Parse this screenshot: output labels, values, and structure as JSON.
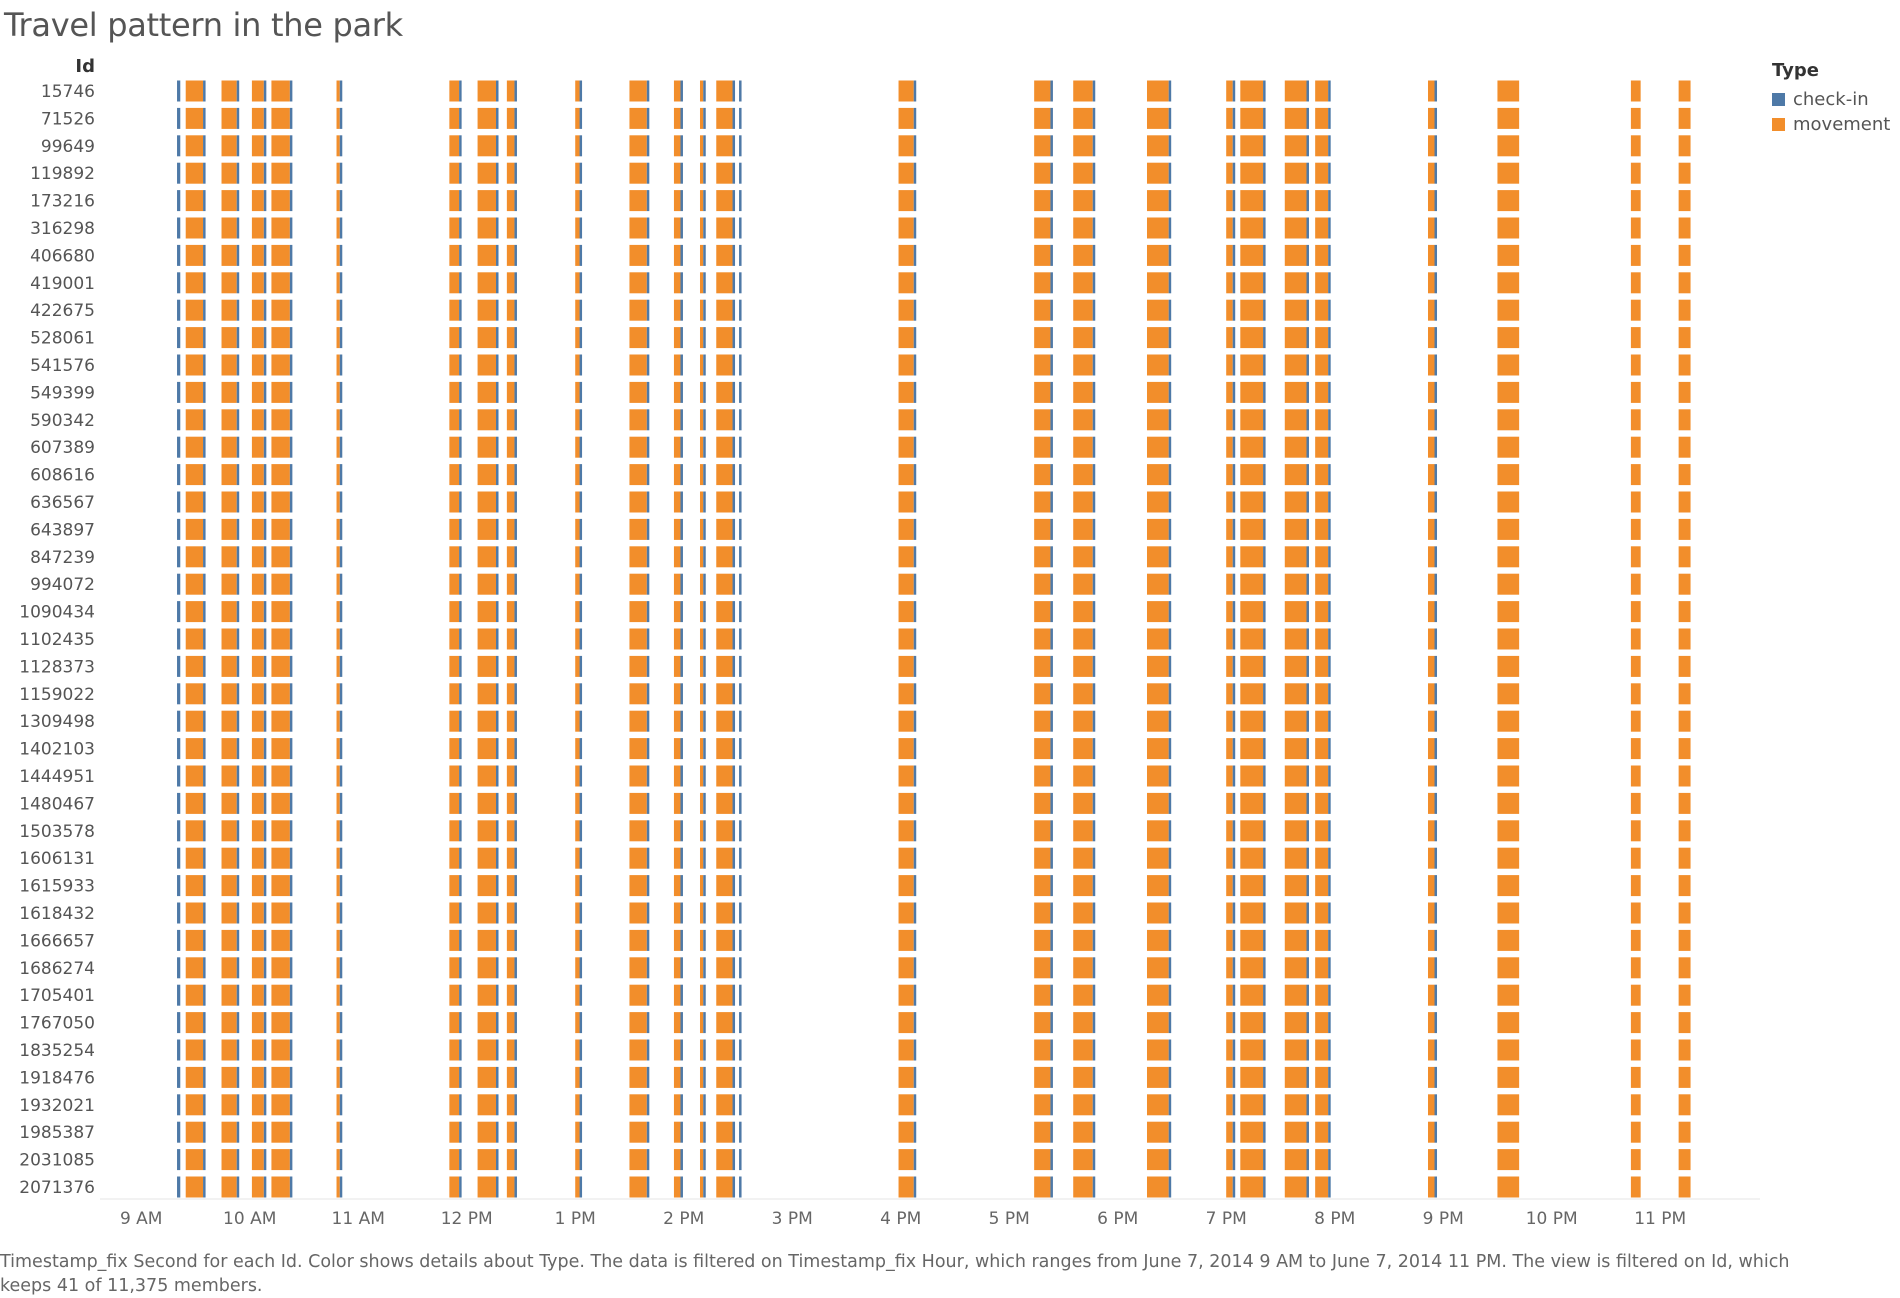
{
  "title": "Travel pattern in the park",
  "caption": "Timestamp_fix Second for each Id.  Color shows details about Type. The data is filtered on Timestamp_fix Hour, which ranges from June 7, 2014 9 AM to June 7, 2014 11 PM. The view is filtered on Id, which keeps 41 of 11,375 members.",
  "legend": {
    "title": "Type",
    "items": [
      {
        "label": "check-in",
        "color": "#4e79a7"
      },
      {
        "label": "movement",
        "color": "#f28e2b"
      }
    ]
  },
  "chart_data": {
    "type": "gantt",
    "ylabel": "Id",
    "xlabel": "",
    "grid": false,
    "legend_position": "top-right",
    "categories": [
      "15746",
      "71526",
      "99649",
      "119892",
      "173216",
      "316298",
      "406680",
      "419001",
      "422675",
      "528061",
      "541576",
      "549399",
      "590342",
      "607389",
      "608616",
      "636567",
      "643897",
      "847239",
      "994072",
      "1090434",
      "1102435",
      "1128373",
      "1159022",
      "1309498",
      "1402103",
      "1444951",
      "1480467",
      "1503578",
      "1606131",
      "1615933",
      "1618432",
      "1666657",
      "1686274",
      "1705401",
      "1767050",
      "1835254",
      "1918476",
      "1932021",
      "1985387",
      "2031085",
      "2071376"
    ],
    "x_ticks": [
      "9 AM",
      "10 AM",
      "11 AM",
      "12 PM",
      "1 PM",
      "2 PM",
      "3 PM",
      "4 PM",
      "5 PM",
      "6 PM",
      "7 PM",
      "8 PM",
      "9 PM",
      "10 PM",
      "11 PM"
    ],
    "xlim": [
      8.62,
      23.92
    ],
    "segments": [
      {
        "start": 9.33,
        "end": 9.36,
        "type": "check-in"
      },
      {
        "start": 9.41,
        "end": 9.57,
        "type": "movement"
      },
      {
        "start": 9.57,
        "end": 9.59,
        "type": "check-in"
      },
      {
        "start": 9.74,
        "end": 9.88,
        "type": "movement"
      },
      {
        "start": 9.88,
        "end": 9.9,
        "type": "check-in"
      },
      {
        "start": 10.02,
        "end": 10.13,
        "type": "movement"
      },
      {
        "start": 10.13,
        "end": 10.15,
        "type": "check-in"
      },
      {
        "start": 10.2,
        "end": 10.37,
        "type": "movement"
      },
      {
        "start": 10.37,
        "end": 10.39,
        "type": "check-in"
      },
      {
        "start": 10.8,
        "end": 10.83,
        "type": "movement"
      },
      {
        "start": 10.83,
        "end": 10.85,
        "type": "check-in"
      },
      {
        "start": 11.84,
        "end": 11.93,
        "type": "movement"
      },
      {
        "start": 11.93,
        "end": 11.95,
        "type": "check-in"
      },
      {
        "start": 12.1,
        "end": 12.27,
        "type": "movement"
      },
      {
        "start": 12.27,
        "end": 12.29,
        "type": "check-in"
      },
      {
        "start": 12.37,
        "end": 12.44,
        "type": "movement"
      },
      {
        "start": 12.44,
        "end": 12.46,
        "type": "check-in"
      },
      {
        "start": 13.0,
        "end": 13.04,
        "type": "movement"
      },
      {
        "start": 13.04,
        "end": 13.06,
        "type": "check-in"
      },
      {
        "start": 13.5,
        "end": 13.66,
        "type": "movement"
      },
      {
        "start": 13.66,
        "end": 13.68,
        "type": "check-in"
      },
      {
        "start": 13.91,
        "end": 13.97,
        "type": "movement"
      },
      {
        "start": 13.97,
        "end": 13.99,
        "type": "check-in"
      },
      {
        "start": 14.15,
        "end": 14.18,
        "type": "movement"
      },
      {
        "start": 14.18,
        "end": 14.2,
        "type": "check-in"
      },
      {
        "start": 14.3,
        "end": 14.45,
        "type": "movement"
      },
      {
        "start": 14.45,
        "end": 14.47,
        "type": "check-in"
      },
      {
        "start": 14.51,
        "end": 14.53,
        "type": "check-in"
      },
      {
        "start": 15.98,
        "end": 16.12,
        "type": "movement"
      },
      {
        "start": 16.12,
        "end": 16.14,
        "type": "check-in"
      },
      {
        "start": 17.23,
        "end": 17.38,
        "type": "movement"
      },
      {
        "start": 17.38,
        "end": 17.4,
        "type": "check-in"
      },
      {
        "start": 17.59,
        "end": 17.77,
        "type": "movement"
      },
      {
        "start": 17.77,
        "end": 17.79,
        "type": "check-in"
      },
      {
        "start": 18.27,
        "end": 18.47,
        "type": "movement"
      },
      {
        "start": 18.47,
        "end": 18.49,
        "type": "check-in"
      },
      {
        "start": 19.0,
        "end": 19.06,
        "type": "movement"
      },
      {
        "start": 19.06,
        "end": 19.08,
        "type": "check-in"
      },
      {
        "start": 19.13,
        "end": 19.34,
        "type": "movement"
      },
      {
        "start": 19.34,
        "end": 19.36,
        "type": "check-in"
      },
      {
        "start": 19.54,
        "end": 19.74,
        "type": "movement"
      },
      {
        "start": 19.74,
        "end": 19.76,
        "type": "check-in"
      },
      {
        "start": 19.82,
        "end": 19.94,
        "type": "movement"
      },
      {
        "start": 19.94,
        "end": 19.96,
        "type": "check-in"
      },
      {
        "start": 20.86,
        "end": 20.92,
        "type": "movement"
      },
      {
        "start": 20.92,
        "end": 20.94,
        "type": "check-in"
      },
      {
        "start": 21.5,
        "end": 21.7,
        "type": "movement"
      },
      {
        "start": 22.73,
        "end": 22.82,
        "type": "movement"
      },
      {
        "start": 23.17,
        "end": 23.28,
        "type": "movement"
      }
    ]
  }
}
